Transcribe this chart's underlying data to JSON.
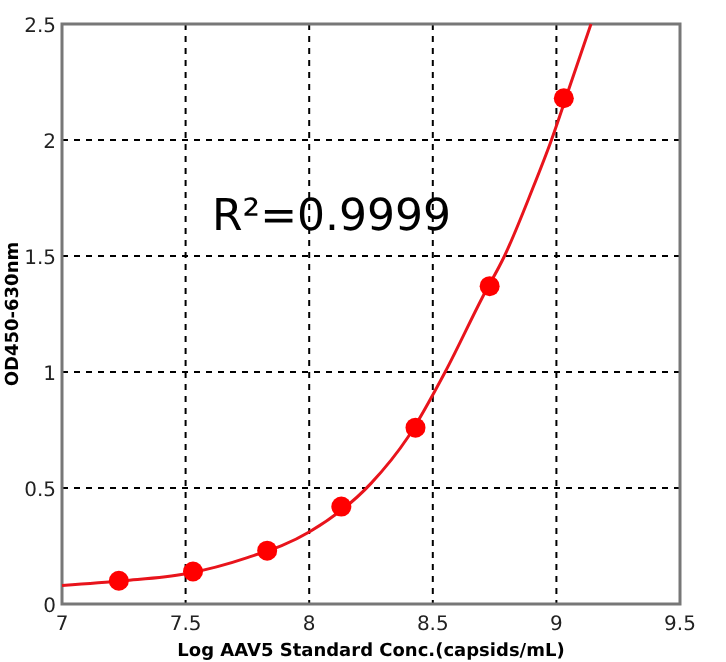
{
  "chart_data": {
    "type": "scatter",
    "xlabel": "Log AAV5 Standard Conc.(capsids/mL)",
    "ylabel": "OD450-630nm",
    "xlim": [
      7,
      9.5
    ],
    "xticks": [
      7,
      7.5,
      8,
      8.5,
      9,
      9.5
    ],
    "ylim": [
      0,
      2.5
    ],
    "yticks": [
      0,
      0.5,
      1,
      1.5,
      2,
      2.5
    ],
    "grid": true,
    "annotations": [
      "R²=0.9999"
    ],
    "series": [
      {
        "type": "line",
        "color": "#e8141c",
        "marker": "none",
        "x": [
          7.0,
          7.25,
          7.5,
          7.75,
          8.0,
          8.25,
          8.4,
          8.55,
          8.7,
          8.79,
          8.9,
          8.98,
          9.06,
          9.14
        ],
        "values": [
          0.08,
          0.1,
          0.13,
          0.2,
          0.31,
          0.52,
          0.72,
          1.0,
          1.32,
          1.5,
          1.78,
          2.0,
          2.25,
          2.5
        ]
      },
      {
        "type": "scatter",
        "color": "#ff0000",
        "marker": "circle",
        "x": [
          7.23,
          7.53,
          7.83,
          8.13,
          8.43,
          8.73,
          9.03
        ],
        "values": [
          0.1,
          0.14,
          0.23,
          0.42,
          0.76,
          1.37,
          2.18
        ]
      }
    ]
  }
}
